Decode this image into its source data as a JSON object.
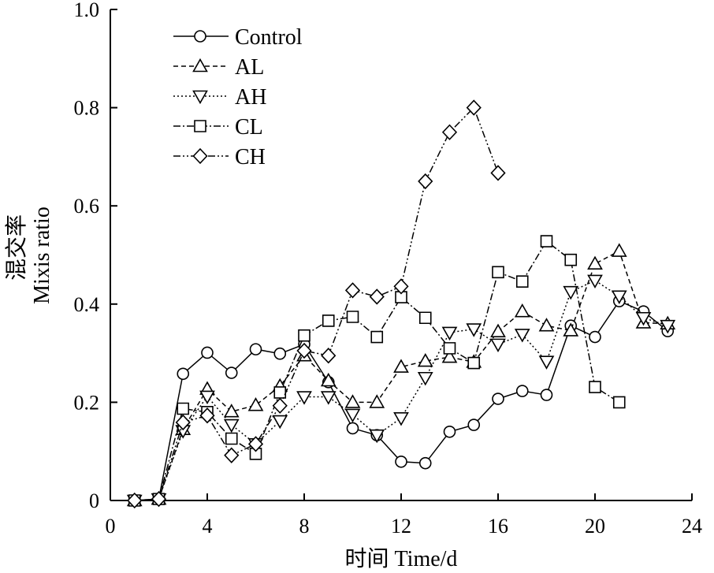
{
  "chart_data": {
    "type": "line",
    "xlabel": "时间 Time/d",
    "ylabel_cn": "混交率",
    "ylabel_en": "Mixis ratio",
    "xlim": [
      0,
      24
    ],
    "ylim": [
      0,
      1.0
    ],
    "x_ticks": [
      0,
      4,
      8,
      12,
      16,
      20,
      24
    ],
    "x_tick_labels": [
      "0",
      "4",
      "8",
      "12",
      "16",
      "20",
      "24"
    ],
    "y_ticks": [
      0,
      0.2,
      0.4,
      0.6,
      0.8,
      1.0
    ],
    "y_tick_labels": [
      "0",
      "0.2",
      "0.4",
      "0.6",
      "0.8",
      "1.0"
    ],
    "grid": false,
    "legend_position": "top-left",
    "series": [
      {
        "name": "Control",
        "marker": "circle",
        "line_style": "solid",
        "points": [
          [
            1,
            0
          ],
          [
            2,
            0.003
          ],
          [
            3,
            0.258
          ],
          [
            4,
            0.301
          ],
          [
            5,
            0.26
          ],
          [
            6,
            0.308
          ],
          [
            7,
            0.299
          ],
          [
            8,
            0.318
          ],
          [
            9,
            0.241
          ],
          [
            10,
            0.147
          ],
          [
            11,
            0.133
          ],
          [
            12,
            0.079
          ],
          [
            13,
            0.076
          ],
          [
            14,
            0.14
          ],
          [
            15,
            0.154
          ],
          [
            16,
            0.207
          ],
          [
            17,
            0.223
          ],
          [
            18,
            0.215
          ],
          [
            19,
            0.356
          ],
          [
            20,
            0.333
          ],
          [
            21,
            0.406
          ],
          [
            22,
            0.385
          ],
          [
            23,
            0.345
          ]
        ]
      },
      {
        "name": "AL",
        "marker": "triangle-up",
        "line_style": "dashed",
        "points": [
          [
            1,
            0
          ],
          [
            2,
            0.003
          ],
          [
            3,
            0.145
          ],
          [
            4,
            0.227
          ],
          [
            5,
            0.181
          ],
          [
            6,
            0.194
          ],
          [
            7,
            0.233
          ],
          [
            8,
            0.295
          ],
          [
            9,
            0.244
          ],
          [
            10,
            0.2
          ],
          [
            11,
            0.2
          ],
          [
            12,
            0.272
          ],
          [
            13,
            0.284
          ],
          [
            14,
            0.292
          ],
          [
            15,
            0.282
          ],
          [
            16,
            0.344
          ],
          [
            17,
            0.385
          ],
          [
            18,
            0.356
          ],
          [
            19,
            0.346
          ],
          [
            20,
            0.482
          ],
          [
            21,
            0.508
          ],
          [
            22,
            0.362
          ],
          [
            23,
            0.36
          ]
        ]
      },
      {
        "name": "AH",
        "marker": "triangle-down",
        "line_style": "dotted",
        "points": [
          [
            1,
            0
          ],
          [
            2,
            0.003
          ],
          [
            3,
            0.142
          ],
          [
            4,
            0.212
          ],
          [
            5,
            0.154
          ],
          [
            6,
            0.115
          ],
          [
            7,
            0.162
          ],
          [
            8,
            0.211
          ],
          [
            9,
            0.211
          ],
          [
            10,
            0.175
          ],
          [
            11,
            0.133
          ],
          [
            12,
            0.168
          ],
          [
            13,
            0.25
          ],
          [
            14,
            0.342
          ],
          [
            15,
            0.349
          ],
          [
            16,
            0.318
          ],
          [
            17,
            0.338
          ],
          [
            18,
            0.283
          ],
          [
            19,
            0.425
          ],
          [
            20,
            0.448
          ],
          [
            21,
            0.416
          ],
          [
            22,
            0.372
          ],
          [
            23,
            0.356
          ]
        ]
      },
      {
        "name": "CL",
        "marker": "square",
        "line_style": "dash-dot",
        "points": [
          [
            1,
            0
          ],
          [
            2,
            0.003
          ],
          [
            3,
            0.187
          ],
          [
            4,
            0.18
          ],
          [
            5,
            0.126
          ],
          [
            6,
            0.095
          ],
          [
            7,
            0.22
          ],
          [
            8,
            0.336
          ],
          [
            9,
            0.366
          ],
          [
            10,
            0.374
          ],
          [
            11,
            0.333
          ],
          [
            12,
            0.414
          ],
          [
            13,
            0.372
          ],
          [
            14,
            0.31
          ],
          [
            15,
            0.28
          ],
          [
            16,
            0.465
          ],
          [
            17,
            0.446
          ],
          [
            18,
            0.528
          ],
          [
            19,
            0.49
          ],
          [
            20,
            0.231
          ],
          [
            21,
            0.2
          ]
        ]
      },
      {
        "name": "CH",
        "marker": "diamond",
        "line_style": "dash-dot-dot",
        "points": [
          [
            1,
            0
          ],
          [
            2,
            0.003
          ],
          [
            3,
            0.159
          ],
          [
            4,
            0.173
          ],
          [
            5,
            0.092
          ],
          [
            6,
            0.115
          ],
          [
            7,
            0.193
          ],
          [
            8,
            0.305
          ],
          [
            9,
            0.295
          ],
          [
            10,
            0.428
          ],
          [
            11,
            0.415
          ],
          [
            12,
            0.436
          ],
          [
            13,
            0.65
          ],
          [
            14,
            0.75
          ],
          [
            15,
            0.8
          ],
          [
            16,
            0.667
          ]
        ]
      }
    ]
  }
}
